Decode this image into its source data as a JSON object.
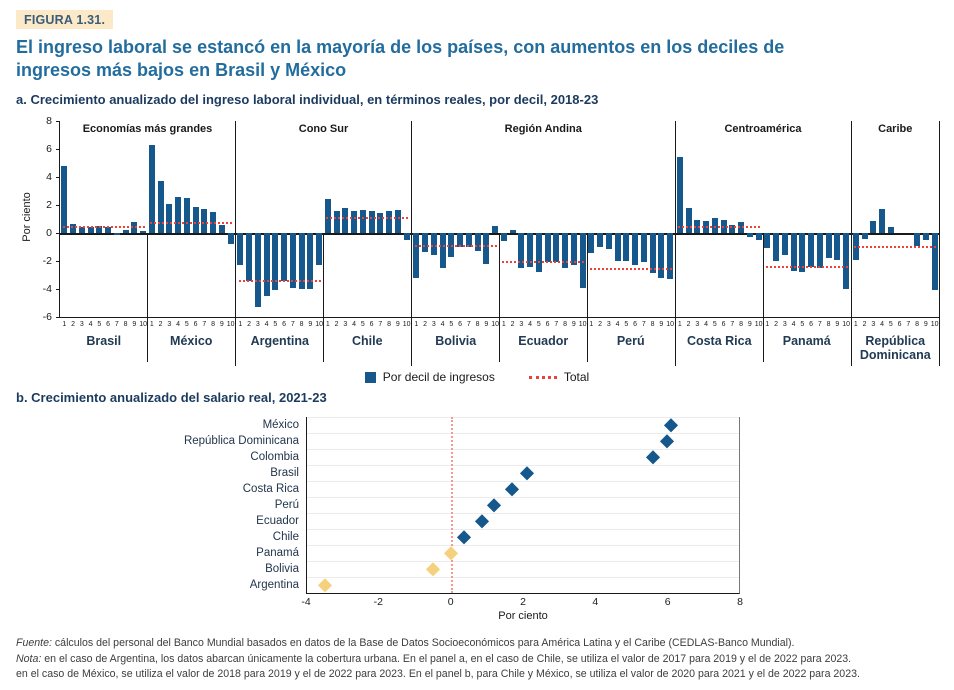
{
  "figure": {
    "badge": "FIGURA 1.31.",
    "title": "El ingreso laboral se estancó en la mayoría de los países, con aumentos en los deciles de ingresos más bajos en Brasil y México"
  },
  "panel_a": {
    "heading": "a. Crecimiento anualizado del ingreso laboral individual, en términos reales, por decil, 2018-23",
    "ylabel": "Por ciento",
    "legend": {
      "deciles": "Por decil de ingresos",
      "total": "Total"
    }
  },
  "panel_b": {
    "heading": "b. Crecimiento anualizado del salario real, 2021-23",
    "xlabel": "Por ciento"
  },
  "colors": {
    "bar_blue": "#16578C",
    "diamond_blue": "#16578C",
    "diamond_yellow": "#F5D17E",
    "total_red": "#E8443B",
    "zero_dotted_pink": "#F29B94",
    "title_blue": "#236D9E",
    "heading_navy": "#1B3A5F",
    "badge_bg": "#FCE9C8"
  },
  "chart_data": [
    {
      "type": "bar",
      "title": "a. Crecimiento anualizado del ingreso laboral individual, en términos reales, por decil, 2018-23",
      "ylabel": "Por ciento",
      "ylim": [
        -6,
        8
      ],
      "yticks": [
        8,
        6,
        4,
        2,
        0,
        -2,
        -4,
        -6
      ],
      "decile_labels": [
        "1",
        "2",
        "3",
        "4",
        "5",
        "6",
        "7",
        "8",
        "9",
        "10"
      ],
      "legend": [
        "Por decil de ingresos",
        "Total"
      ],
      "regions": [
        {
          "name": "Economías más grandes",
          "countries": [
            {
              "name": "Brasil",
              "values": [
                4.8,
                0.65,
                0.45,
                0.45,
                0.5,
                0.45,
                -0.15,
                0.25,
                0.8,
                0.15
              ],
              "total": 0.4
            },
            {
              "name": "México",
              "values": [
                6.3,
                3.75,
                2.1,
                2.6,
                2.5,
                1.85,
                1.75,
                1.5,
                0.6,
                -0.8
              ],
              "total": 0.7
            }
          ]
        },
        {
          "name": "Cono Sur",
          "countries": [
            {
              "name": "Argentina",
              "values": [
                -2.3,
                -3.4,
                -5.3,
                -4.5,
                -4.1,
                -3.4,
                -3.9,
                -4.0,
                -4.0,
                -2.3
              ],
              "total": -3.4
            },
            {
              "name": "Chile",
              "values": [
                2.4,
                1.6,
                1.8,
                1.55,
                1.65,
                1.55,
                1.4,
                1.6,
                1.65,
                -0.5
              ],
              "total": 1.1
            }
          ]
        },
        {
          "name": "Región Andina",
          "countries": [
            {
              "name": "Bolivia",
              "values": [
                -3.2,
                -1.35,
                -1.6,
                -2.5,
                -1.7,
                -1.0,
                -1.0,
                -1.3,
                -2.2,
                0.5
              ],
              "total": -0.9
            },
            {
              "name": "Ecuador",
              "values": [
                -0.6,
                0.2,
                -2.5,
                -2.4,
                -2.75,
                -2.1,
                -2.1,
                -2.5,
                -2.3,
                -3.9
              ],
              "total": -2.05
            },
            {
              "name": "Perú",
              "values": [
                -1.4,
                -1.0,
                -1.15,
                -2.0,
                -2.0,
                -2.25,
                -2.1,
                -2.85,
                -3.2,
                -3.3
              ],
              "total": -2.6
            }
          ]
        },
        {
          "name": "Centroamérica",
          "countries": [
            {
              "name": "Costa Rica",
              "values": [
                5.4,
                1.8,
                0.9,
                0.85,
                1.1,
                0.9,
                0.6,
                0.8,
                -0.3,
                -0.5
              ],
              "total": 0.4
            },
            {
              "name": "Panamá",
              "values": [
                -1.1,
                -2.0,
                -1.55,
                -2.7,
                -2.75,
                -2.45,
                -2.5,
                -1.75,
                -1.95,
                -4.0
              ],
              "total": -2.45
            }
          ]
        },
        {
          "name": "Caribe",
          "countries": [
            {
              "name": "República Dominicana",
              "values": [
                -1.9,
                -0.4,
                0.85,
                1.7,
                0.4,
                0,
                0,
                -0.9,
                -0.5,
                -4.1
              ],
              "total": -1.0
            }
          ]
        }
      ]
    },
    {
      "type": "scatter",
      "title": "b. Crecimiento anualizado del salario real, 2021-23",
      "xlabel": "Por ciento",
      "xlim": [
        -4,
        8
      ],
      "xticks": [
        -4,
        -2,
        0,
        2,
        4,
        6,
        8
      ],
      "zero_line": 0,
      "points": [
        {
          "country": "México",
          "value": 6.1,
          "color": "blue"
        },
        {
          "country": "República Dominicana",
          "value": 6.0,
          "color": "blue"
        },
        {
          "country": "Colombia",
          "value": 5.6,
          "color": "blue"
        },
        {
          "country": "Brasil",
          "value": 2.1,
          "color": "blue"
        },
        {
          "country": "Costa Rica",
          "value": 1.7,
          "color": "blue"
        },
        {
          "country": "Perú",
          "value": 1.2,
          "color": "blue"
        },
        {
          "country": "Ecuador",
          "value": 0.85,
          "color": "blue"
        },
        {
          "country": "Chile",
          "value": 0.35,
          "color": "blue"
        },
        {
          "country": "Panamá",
          "value": 0.0,
          "color": "yellow"
        },
        {
          "country": "Bolivia",
          "value": -0.5,
          "color": "yellow"
        },
        {
          "country": "Argentina",
          "value": -3.5,
          "color": "yellow"
        }
      ]
    }
  ],
  "footnotes": [
    {
      "prefix": "Fuente:",
      "text": " cálculos del personal del Banco Mundial basados en datos de la Base de Datos Socioeconómicos para América Latina y el Caribe (CEDLAS-Banco Mundial)."
    },
    {
      "prefix": "Nota:",
      "text": " en el caso de Argentina, los datos abarcan únicamente la cobertura urbana. En el panel a, en el caso de Chile, se utiliza el valor de 2017 para 2019 y el de 2022 para 2023."
    },
    {
      "prefix": "",
      "text": "en el caso de México, se utiliza el valor de 2018 para 2019 y el de 2022 para 2023. En el panel b, para Chile y México, se utiliza el valor de 2020 para 2021 y el de 2022 para 2023."
    }
  ]
}
